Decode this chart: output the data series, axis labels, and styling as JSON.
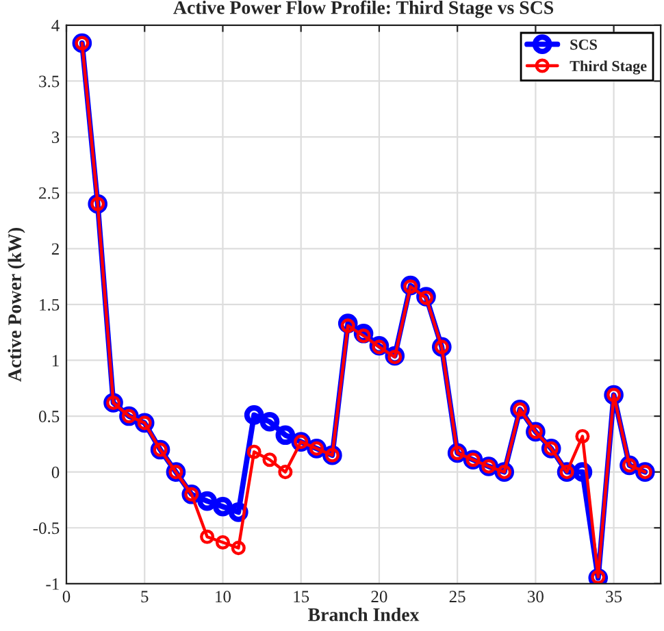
{
  "chart_data": {
    "type": "line",
    "title": "Active Power Flow Profile: Third Stage vs SCS",
    "xlabel": "Branch Index",
    "ylabel": "Active Power (kW)",
    "x": [
      1,
      2,
      3,
      4,
      5,
      6,
      7,
      8,
      9,
      10,
      11,
      12,
      13,
      14,
      15,
      16,
      17,
      18,
      19,
      20,
      21,
      22,
      23,
      24,
      25,
      26,
      27,
      28,
      29,
      30,
      31,
      32,
      33,
      34,
      35,
      36,
      37
    ],
    "series": [
      {
        "name": "SCS",
        "color": "#0000ff",
        "values": [
          3.84,
          2.4,
          0.62,
          0.5,
          0.44,
          0.2,
          0.0,
          -0.2,
          -0.26,
          -0.31,
          -0.36,
          0.51,
          0.45,
          0.33,
          0.27,
          0.21,
          0.15,
          1.33,
          1.24,
          1.13,
          1.04,
          1.67,
          1.57,
          1.12,
          0.17,
          0.11,
          0.05,
          0.0,
          0.56,
          0.36,
          0.21,
          0.0,
          0.0,
          -0.95,
          0.69,
          0.06,
          0.0
        ]
      },
      {
        "name": "Third Stage",
        "color": "#ff0000",
        "values": [
          3.84,
          2.4,
          0.62,
          0.5,
          0.44,
          0.2,
          0.0,
          -0.2,
          -0.58,
          -0.63,
          -0.68,
          0.18,
          0.11,
          0.0,
          0.27,
          0.21,
          0.15,
          1.31,
          1.22,
          1.12,
          1.03,
          1.66,
          1.56,
          1.12,
          0.17,
          0.11,
          0.05,
          0.0,
          0.56,
          0.36,
          0.21,
          0.0,
          0.32,
          -0.94,
          0.69,
          0.06,
          0.0
        ]
      }
    ],
    "xlim": [
      0,
      38
    ],
    "xticks": [
      0,
      5,
      10,
      15,
      20,
      25,
      30,
      35
    ],
    "ylim": [
      -1,
      4
    ],
    "yticks": [
      -1,
      -0.5,
      0,
      0.5,
      1,
      1.5,
      2,
      2.5,
      3,
      3.5,
      4
    ],
    "grid": true,
    "legend": "top right",
    "marker": "circle",
    "line_style": "solid"
  }
}
